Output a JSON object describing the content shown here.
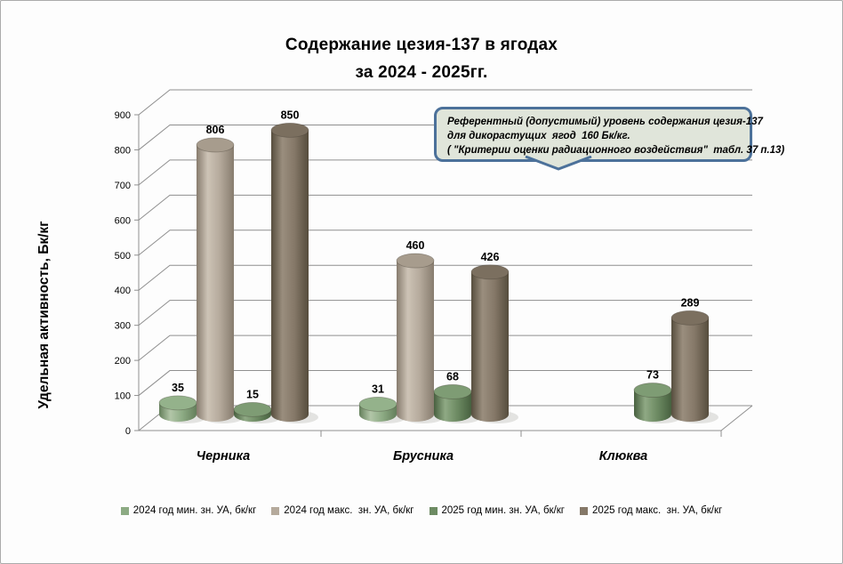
{
  "window": {
    "background": "#fdfdfd",
    "border_color": "#ababab",
    "grid_color": "#8f8f8f",
    "text_color": "#000000"
  },
  "title": {
    "line1": "Содержание цезия-137 в ягодах",
    "line2": "за 2024 - 2025гг."
  },
  "callout": {
    "fill": "#e0e5da",
    "border": "#4c719a",
    "line1": "Референтный (допустимый) уровень содержания цезия-137",
    "line2": "для дикорастущих  ягод  160 Бк/кг.",
    "line3": "( \"Критерии оценки радиационного воздействия\"  табл. 37 п.13)"
  },
  "chart_data": {
    "type": "bar",
    "style": "3d-cylinder",
    "title": "Содержание цезия-137 в ягодах за 2024 - 2025гг.",
    "xlabel": "",
    "ylabel": "Удельная активность, Бк/кг",
    "ylim": [
      0,
      900
    ],
    "ytick_step": 100,
    "grid": true,
    "legend_position": "bottom",
    "categories": [
      "Черника",
      "Брусника",
      "Клюква"
    ],
    "series": [
      {
        "name": "2024 год мин. зн. УА, бк/кг",
        "color": "#8dab84",
        "light": "#b2c6a8",
        "dark": "#647f5b",
        "top": "#94b28b",
        "values": [
          35,
          31,
          null
        ]
      },
      {
        "name": "2024 год макс.  зн. УА, бк/кг",
        "color": "#b5aa9c",
        "light": "#cdc3b6",
        "dark": "#877c6e",
        "top": "#a79c8d",
        "values": [
          806,
          460,
          null
        ]
      },
      {
        "name": "2025 год мин. зн. УА, бк/кг",
        "color": "#6d8b63",
        "light": "#8fa984",
        "dark": "#47603f",
        "top": "#7e9c74",
        "values": [
          15,
          68,
          73
        ]
      },
      {
        "name": "2025 год макс.  зн. УА, бк/кг",
        "color": "#857868",
        "light": "#9a8e7e",
        "dark": "#564d3d",
        "top": "#7b6f5f",
        "values": [
          850,
          426,
          289
        ]
      }
    ]
  }
}
